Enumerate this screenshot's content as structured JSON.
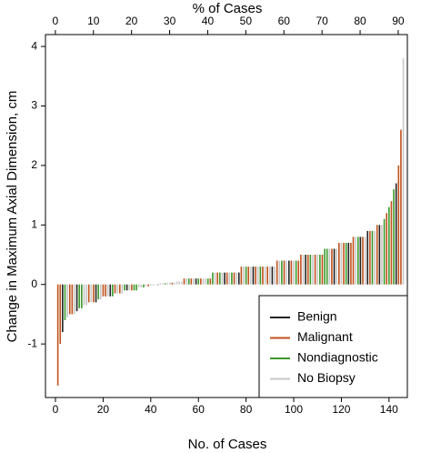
{
  "chart_data": {
    "type": "waterfall",
    "x_label": "No. of Cases",
    "x2_label": "% of Cases",
    "y_label": "Change in Maximum Axial Dimension, cm",
    "xlim": [
      -4.2,
      147.7
    ],
    "xticks": [
      0,
      20,
      40,
      60,
      80,
      100,
      120,
      140
    ],
    "x2lim": [
      -2.6,
      92.4
    ],
    "x2ticks": [
      0,
      10,
      20,
      30,
      40,
      50,
      60,
      70,
      80,
      90
    ],
    "ylim": [
      -1.9,
      4.2
    ],
    "yticks": [
      -1,
      0,
      1,
      2,
      3,
      4
    ],
    "legend": "bottom-right",
    "series": [
      {
        "name": "Benign",
        "color": "#222222",
        "x": [
          3,
          9,
          17,
          23,
          30,
          43,
          59,
          71,
          77,
          83,
          91,
          98,
          105,
          117,
          123,
          128,
          131,
          136,
          143
        ],
        "values": [
          -0.8,
          -0.45,
          -0.3,
          -0.2,
          -0.1,
          0,
          0.1,
          0.2,
          0.2,
          0.3,
          0.3,
          0.4,
          0.5,
          0.6,
          0.7,
          0.8,
          0.9,
          1.0,
          1.7
        ]
      },
      {
        "name": "Malignant",
        "color": "#c0521c",
        "x": [
          1,
          2,
          6,
          7,
          14,
          16,
          20,
          21,
          25,
          27,
          32,
          39,
          49,
          54,
          57,
          61,
          65,
          68,
          72,
          75,
          78,
          81,
          84,
          87,
          89,
          93,
          96,
          99,
          102,
          103,
          106,
          109,
          112,
          116,
          119,
          121,
          124,
          125,
          129,
          132,
          135,
          139,
          141,
          144,
          145
        ],
        "values": [
          -1.7,
          -1.0,
          -0.5,
          -0.5,
          -0.3,
          -0.3,
          -0.2,
          -0.2,
          -0.15,
          -0.15,
          -0.1,
          -0.03,
          0.03,
          0.1,
          0.1,
          0.1,
          0.1,
          0.2,
          0.2,
          0.2,
          0.3,
          0.3,
          0.3,
          0.3,
          0.3,
          0.4,
          0.4,
          0.4,
          0.4,
          0.5,
          0.5,
          0.5,
          0.5,
          0.6,
          0.7,
          0.7,
          0.7,
          0.8,
          0.8,
          0.9,
          1.0,
          1.2,
          1.4,
          2.0,
          2.6
        ]
      },
      {
        "name": "Nondiagnostic",
        "color": "#3a9a2a",
        "x": [
          4,
          10,
          11,
          18,
          24,
          29,
          33,
          34,
          37,
          46,
          56,
          60,
          64,
          66,
          69,
          74,
          80,
          86,
          95,
          101,
          107,
          111,
          113,
          114,
          122,
          127,
          133,
          138,
          140,
          142
        ],
        "values": [
          -0.6,
          -0.4,
          -0.4,
          -0.25,
          -0.2,
          -0.1,
          -0.1,
          -0.1,
          -0.05,
          0.02,
          0.1,
          0.1,
          0.1,
          0.2,
          0.2,
          0.2,
          0.3,
          0.3,
          0.4,
          0.4,
          0.5,
          0.5,
          0.6,
          0.6,
          0.7,
          0.8,
          0.9,
          1.1,
          1.3,
          1.6
        ]
      },
      {
        "name": "No Biopsy",
        "color": "#c8c8c8",
        "x": [
          5,
          8,
          12,
          13,
          15,
          19,
          22,
          26,
          28,
          31,
          35,
          36,
          38,
          40,
          41,
          42,
          44,
          45,
          47,
          48,
          50,
          51,
          52,
          53,
          55,
          58,
          62,
          63,
          67,
          70,
          73,
          76,
          79,
          82,
          85,
          88,
          90,
          92,
          94,
          97,
          100,
          104,
          108,
          110,
          115,
          118,
          120,
          126,
          130,
          134,
          137,
          146
        ],
        "values": [
          -0.55,
          -0.5,
          -0.35,
          -0.35,
          -0.3,
          -0.25,
          -0.2,
          -0.15,
          -0.15,
          -0.1,
          -0.05,
          -0.05,
          -0.03,
          -0.02,
          -0.02,
          0,
          0.02,
          0.02,
          0.03,
          0.03,
          0.03,
          0.05,
          0.05,
          0.05,
          0.1,
          0.1,
          0.1,
          0.1,
          0.2,
          0.2,
          0.2,
          0.2,
          0.3,
          0.3,
          0.3,
          0.3,
          0.3,
          0.3,
          0.4,
          0.4,
          0.4,
          0.5,
          0.5,
          0.5,
          0.6,
          0.6,
          0.7,
          0.8,
          0.8,
          0.9,
          1.0,
          3.8
        ]
      }
    ]
  }
}
